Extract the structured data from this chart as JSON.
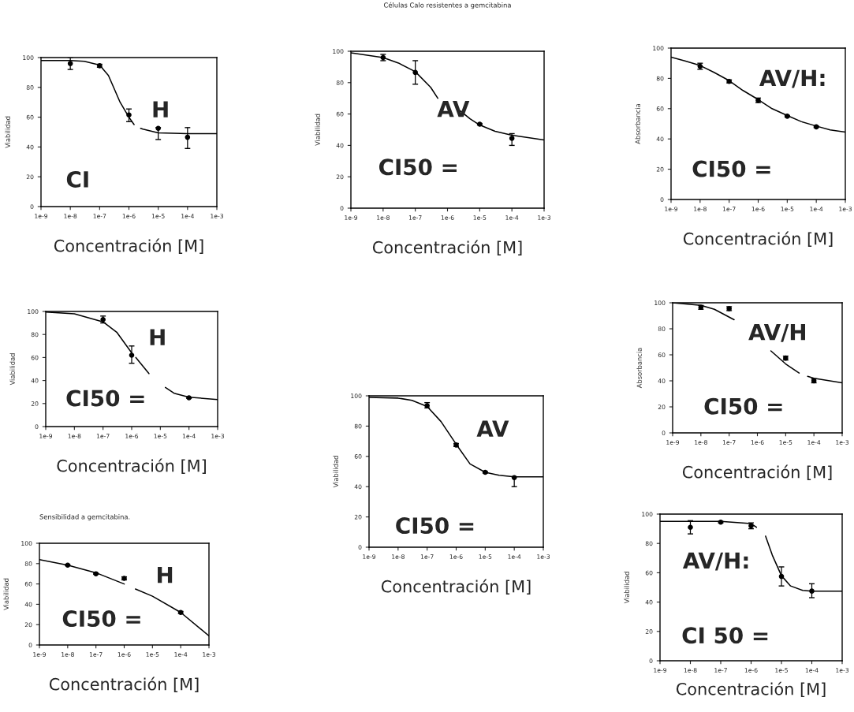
{
  "chart_data": [
    {
      "type": "scatter",
      "xlabel": "Concentración [M]",
      "ylabel": "Viabilidad",
      "log": "x",
      "xlim": [
        1e-09,
        0.001
      ],
      "ylim": [
        0,
        100
      ],
      "xticks": [
        {
          "value": 1e-09,
          "label": "1e-9"
        },
        {
          "value": 1e-08,
          "label": "1e-8"
        },
        {
          "value": 1e-07,
          "label": "1e-7"
        },
        {
          "value": 1e-06,
          "label": "1e-6"
        },
        {
          "value": 1e-05,
          "label": "1e-5"
        },
        {
          "value": 0.0001,
          "label": "1e-4"
        },
        {
          "value": 0.001,
          "label": "1e-3"
        }
      ],
      "yticks": [
        0,
        20,
        40,
        60,
        80,
        100
      ],
      "annotations": [
        "H",
        "CI"
      ],
      "series": [
        {
          "type": "scatter",
          "marker": "circle",
          "color": "#000000",
          "x": [
            1e-08,
            1e-07,
            1e-06,
            1e-05,
            0.0001
          ],
          "values": [
            96,
            94.5,
            61.5,
            52.5,
            46.5
          ],
          "errors": [
            [
              92,
              100
            ],
            [
              93.5,
              95.5
            ],
            [
              57,
              65.5
            ],
            [
              45,
              53
            ],
            [
              39,
              53
            ]
          ]
        },
        {
          "type": "line",
          "color": "#000000",
          "x": [
            1e-09,
            1e-08,
            3e-08,
            1e-07,
            2e-07,
            3e-07,
            5e-07,
            1e-06,
            1.5e-06,
            2e-06,
            2.5e-06,
            3e-06,
            1e-05,
            0.0001,
            0.001
          ],
          "values": [
            98,
            98,
            97.5,
            95,
            88,
            80,
            70,
            60,
            55,
            null,
            52.5,
            52,
            49.5,
            49,
            49
          ]
        }
      ]
    },
    {
      "type": "scatter",
      "title": "Células Calo resistentes a gemcitabina",
      "xlabel": "Concentración [M]",
      "ylabel": "Viabilidad",
      "log": "x",
      "xlim": [
        1e-09,
        0.001
      ],
      "ylim": [
        0,
        100
      ],
      "xticks": [
        {
          "value": 1e-09,
          "label": "1e-9"
        },
        {
          "value": 1e-08,
          "label": "1e-8"
        },
        {
          "value": 1e-07,
          "label": "1e-7"
        },
        {
          "value": 1e-06,
          "label": "1e-6"
        },
        {
          "value": 1e-05,
          "label": "1e-5"
        },
        {
          "value": 0.0001,
          "label": "1e-4"
        },
        {
          "value": 0.001,
          "label": "1e-3"
        }
      ],
      "yticks": [
        0,
        20,
        40,
        60,
        80,
        100
      ],
      "annotations": [
        "AV",
        "CI50 ="
      ],
      "series": [
        {
          "type": "scatter",
          "marker": "circle",
          "color": "#000000",
          "x": [
            1e-08,
            1e-07,
            1e-06,
            1e-05,
            0.0001
          ],
          "values": [
            96,
            86.5,
            null,
            53.5,
            44.5
          ],
          "errors": [
            [
              94,
              98
            ],
            [
              79,
              94
            ],
            null,
            [
              53,
              54
            ],
            [
              40,
              47.5
            ]
          ]
        },
        {
          "type": "line",
          "color": "#000000",
          "x": [
            1e-09,
            1e-08,
            3e-08,
            1e-07,
            3e-07,
            5e-07,
            1e-06,
            2.5e-06,
            5e-06,
            1e-05,
            3e-05,
            0.0001,
            0.001
          ],
          "values": [
            99,
            96,
            92.5,
            87,
            77,
            70,
            null,
            62,
            57,
            53,
            49,
            46.5,
            43.5
          ]
        }
      ]
    },
    {
      "type": "scatter",
      "xlabel": "Concentración [M]",
      "ylabel": "Absorbancia",
      "log": "x",
      "xlim": [
        1e-09,
        0.001
      ],
      "ylim": [
        0,
        100
      ],
      "xticks": [
        {
          "value": 1e-09,
          "label": "1e-9"
        },
        {
          "value": 1e-08,
          "label": "1e-8"
        },
        {
          "value": 1e-07,
          "label": "1e-7"
        },
        {
          "value": 1e-06,
          "label": "1e-6"
        },
        {
          "value": 1e-05,
          "label": "1e-5"
        },
        {
          "value": 0.0001,
          "label": "1e-4"
        },
        {
          "value": 0.001,
          "label": "1e-3"
        }
      ],
      "yticks": [
        0,
        20,
        40,
        60,
        80,
        100
      ],
      "annotations": [
        "AV/H:",
        "CI50 ="
      ],
      "series": [
        {
          "type": "scatter",
          "marker": "circle",
          "color": "#000000",
          "x": [
            1e-08,
            1e-07,
            1e-06,
            1e-05,
            0.0001
          ],
          "values": [
            88,
            78,
            65.5,
            55,
            48
          ],
          "errors": [
            [
              86,
              90
            ],
            [
              77,
              79
            ],
            [
              64,
              67
            ],
            [
              54.5,
              55.5
            ],
            [
              47.5,
              48.5
            ]
          ]
        },
        {
          "type": "line",
          "color": "#000000",
          "x": [
            1e-09,
            3e-09,
            1e-08,
            3e-08,
            1e-07,
            3e-07,
            1e-06,
            3e-06,
            1e-05,
            3e-05,
            0.0001,
            0.0003,
            0.001
          ],
          "values": [
            94,
            91.5,
            88.5,
            84,
            78.5,
            72,
            66,
            60,
            55.5,
            51.5,
            48.5,
            46,
            44.5
          ]
        }
      ]
    },
    {
      "type": "scatter",
      "xlabel": "Concentración [M]",
      "ylabel": "Viabilidad",
      "log": "x",
      "xlim": [
        1e-09,
        0.001
      ],
      "ylim": [
        0,
        100
      ],
      "xticks": [
        {
          "value": 1e-09,
          "label": "1e-9"
        },
        {
          "value": 1e-08,
          "label": "1e-8"
        },
        {
          "value": 1e-07,
          "label": "1e-7"
        },
        {
          "value": 1e-06,
          "label": "1e-6"
        },
        {
          "value": 1e-05,
          "label": "1e-5"
        },
        {
          "value": 0.0001,
          "label": "1e-4"
        },
        {
          "value": 0.001,
          "label": "1e-3"
        }
      ],
      "yticks": [
        0,
        20,
        40,
        60,
        80,
        100
      ],
      "annotations": [
        "H",
        "CI50 ="
      ],
      "series": [
        {
          "type": "scatter",
          "marker": "circle",
          "color": "#000000",
          "x": [
            1e-07,
            1e-06,
            0.0001
          ],
          "values": [
            93,
            62,
            25
          ],
          "errors": [
            [
              90,
              96
            ],
            [
              55,
              70
            ],
            [
              24.5,
              25.5
            ]
          ]
        },
        {
          "type": "line",
          "color": "#000000",
          "x": [
            1e-09,
            1e-08,
            1e-07,
            3e-07,
            1e-06,
            1.2e-06,
            1.4e-06,
            4e-06,
            8e-06,
            1.5e-05,
            3e-05,
            0.0001,
            0.001
          ],
          "values": [
            99.5,
            98,
            91,
            82,
            64,
            null,
            60,
            46,
            null,
            34,
            29,
            25.5,
            23.5
          ]
        }
      ]
    },
    {
      "type": "scatter",
      "xlabel": "Concentración [M]",
      "ylabel": "Viabilidad",
      "log": "x",
      "xlim": [
        1e-09,
        0.001
      ],
      "ylim": [
        0,
        100
      ],
      "xticks": [
        {
          "value": 1e-09,
          "label": "1e-9"
        },
        {
          "value": 1e-08,
          "label": "1e-8"
        },
        {
          "value": 1e-07,
          "label": "1e-7"
        },
        {
          "value": 1e-06,
          "label": "1e-6"
        },
        {
          "value": 1e-05,
          "label": "1e-5"
        },
        {
          "value": 0.0001,
          "label": "1e-4"
        },
        {
          "value": 0.001,
          "label": "1e-3"
        }
      ],
      "yticks": [
        0,
        20,
        40,
        60,
        80,
        100
      ],
      "annotations": [
        "AV",
        "CI50 ="
      ],
      "series": [
        {
          "type": "scatter",
          "marker": "circle",
          "color": "#000000",
          "x": [
            1e-07,
            1e-06,
            1e-05,
            0.0001
          ],
          "values": [
            93.5,
            67.5,
            49.5,
            46
          ],
          "errors": [
            [
              92,
              95.5
            ],
            [
              66.5,
              68.5
            ],
            [
              49,
              50
            ],
            [
              40,
              46.5
            ]
          ]
        },
        {
          "type": "line",
          "color": "#000000",
          "x": [
            1e-09,
            1e-08,
            3e-08,
            1e-07,
            3e-07,
            1e-06,
            3e-06,
            1e-05,
            3e-05,
            0.0001,
            0.001
          ],
          "values": [
            99,
            98.5,
            97,
            93,
            83,
            68,
            55,
            49.5,
            47.5,
            46.5,
            46.5
          ]
        }
      ]
    },
    {
      "type": "scatter",
      "xlabel": "Concentración [M]",
      "ylabel": "Absorbancia",
      "log": "x",
      "xlim": [
        1e-09,
        0.001
      ],
      "ylim": [
        0,
        100
      ],
      "xticks": [
        {
          "value": 1e-09,
          "label": "1e-9"
        },
        {
          "value": 1e-08,
          "label": "1e-8"
        },
        {
          "value": 1e-07,
          "label": "1e-7"
        },
        {
          "value": 1e-06,
          "label": "1e-6"
        },
        {
          "value": 1e-05,
          "label": "1e-5"
        },
        {
          "value": 0.0001,
          "label": "1e-4"
        },
        {
          "value": 0.001,
          "label": "1e-3"
        }
      ],
      "yticks": [
        0,
        20,
        40,
        60,
        80,
        100
      ],
      "annotations": [
        "AV/H",
        "CI50 ="
      ],
      "series": [
        {
          "type": "scatter",
          "marker": "circle",
          "color": "#000000",
          "x": [
            1e-08,
            1e-07,
            1e-05,
            0.0001
          ],
          "values": [
            96.5,
            95.5,
            57.5,
            40
          ],
          "errors": [
            [
              95,
              98
            ],
            [
              94,
              97
            ],
            [
              56,
              59
            ],
            [
              38.5,
              41.5
            ]
          ]
        },
        {
          "type": "line",
          "color": "#000000",
          "x": [
            1e-09,
            1e-08,
            3e-08,
            1.5e-07,
            5e-07,
            3e-06,
            1e-05,
            3e-05,
            4.5e-05,
            6e-05,
            0.0001,
            0.001
          ],
          "values": [
            100,
            98,
            95,
            87,
            null,
            63,
            53,
            46,
            null,
            43.5,
            42,
            38.5
          ]
        }
      ]
    },
    {
      "type": "scatter",
      "title": "Sensibilidad a gemcitabina.",
      "xlabel": "Concentración [M]",
      "ylabel": "Viabilidad",
      "log": "x",
      "xlim": [
        1e-09,
        0.001
      ],
      "ylim": [
        0,
        100
      ],
      "xticks": [
        {
          "value": 1e-09,
          "label": "1e-9"
        },
        {
          "value": 1e-08,
          "label": "1e-8"
        },
        {
          "value": 1e-07,
          "label": "1e-7"
        },
        {
          "value": 1e-06,
          "label": "1e-6"
        },
        {
          "value": 1e-05,
          "label": "1e-5"
        },
        {
          "value": 0.0001,
          "label": "1e-4"
        },
        {
          "value": 0.001,
          "label": "1e-3"
        }
      ],
      "yticks": [
        0,
        20,
        40,
        60,
        80,
        100
      ],
      "annotations": [
        "H",
        "CI50 ="
      ],
      "series": [
        {
          "type": "scatter",
          "marker": "circle",
          "color": "#000000",
          "x": [
            1e-08,
            1e-07,
            1e-06,
            0.0001
          ],
          "values": [
            78.5,
            70,
            65.5,
            32
          ],
          "errors": [
            [
              78,
              79
            ],
            [
              69.5,
              70.5
            ],
            [
              64,
              67
            ],
            [
              31,
              33
            ]
          ]
        },
        {
          "type": "line",
          "color": "#000000",
          "x": [
            1e-09,
            1e-08,
            1e-07,
            1e-06,
            1.5e-06,
            2.5e-06,
            1e-05,
            0.0001,
            0.001
          ],
          "values": [
            84,
            78.5,
            71,
            60,
            null,
            55,
            48,
            32,
            9
          ]
        }
      ]
    },
    {
      "type": "scatter",
      "xlabel": "Concentración [M]",
      "ylabel": "Viabilidad",
      "log": "x",
      "xlim": [
        1e-09,
        0.001
      ],
      "ylim": [
        0,
        100
      ],
      "xticks": [
        {
          "value": 1e-09,
          "label": "1e-9"
        },
        {
          "value": 1e-08,
          "label": "1e-8"
        },
        {
          "value": 1e-07,
          "label": "1e-7"
        },
        {
          "value": 1e-06,
          "label": "1e-6"
        },
        {
          "value": 1e-05,
          "label": "1e-5"
        },
        {
          "value": 0.0001,
          "label": "1e-4"
        },
        {
          "value": 0.001,
          "label": "1e-3"
        }
      ],
      "yticks": [
        0,
        20,
        40,
        60,
        80,
        100
      ],
      "annotations": [
        "AV/H:",
        "CI 50 ="
      ],
      "series": [
        {
          "type": "scatter",
          "marker": "circle",
          "color": "#000000",
          "x": [
            1e-08,
            1e-07,
            1e-06,
            1e-05,
            0.0001
          ],
          "values": [
            91,
            94.5,
            92,
            57.5,
            47.5
          ],
          "errors": [
            [
              86.5,
              95.5
            ],
            [
              94,
              95
            ],
            [
              90,
              94
            ],
            [
              51,
              64
            ],
            [
              43,
              52.5
            ]
          ]
        },
        {
          "type": "line",
          "color": "#000000",
          "x": [
            1e-09,
            1e-07,
            1e-06,
            1.5e-06,
            2.5e-06,
            3e-06,
            5e-06,
            1e-05,
            2e-05,
            5e-05,
            0.0001,
            0.001
          ],
          "values": [
            95,
            95,
            93.5,
            91,
            null,
            85,
            72,
            58,
            51,
            48,
            47.5,
            47.5
          ]
        }
      ]
    }
  ]
}
